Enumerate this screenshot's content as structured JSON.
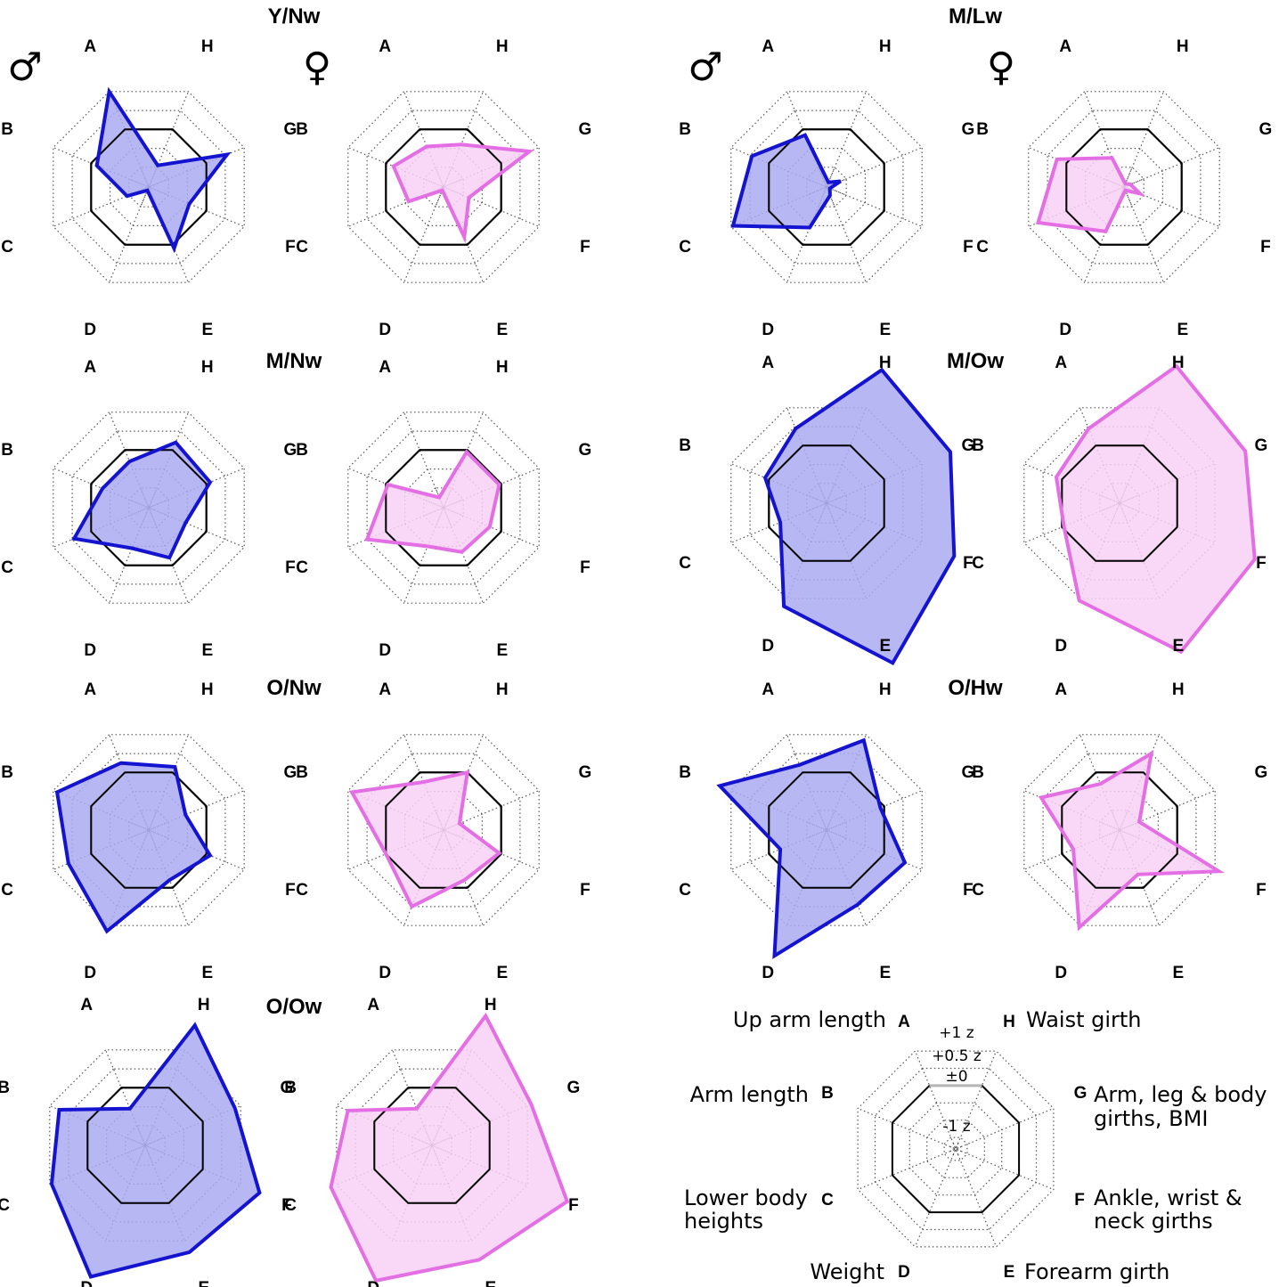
{
  "chart_data": {
    "type": "radar",
    "axes": [
      "A",
      "B",
      "C",
      "D",
      "E",
      "F",
      "G",
      "H"
    ],
    "sex_symbols": {
      "male": "♂",
      "female": "♀"
    },
    "colors": {
      "male": {
        "stroke": "#1414d0",
        "fill": "#aaaaf2"
      },
      "female": {
        "stroke": "#e46ee4",
        "fill": "#f8d0f6"
      },
      "reference": "#000000",
      "grid": "#555555"
    },
    "scale": {
      "rings": [
        -2,
        -1.5,
        -1,
        -0.5,
        0,
        0.5,
        1
      ],
      "reference_ring": 0
    },
    "panels": [
      {
        "group": "Y/Nw",
        "sex": "male",
        "values": {
          "A": 1.0,
          "B": -0.15,
          "C": -0.95,
          "D": -1.9,
          "E": 0.1,
          "F": -0.45,
          "G": 0.55,
          "H": -0.95
        }
      },
      {
        "group": "Y/Nw",
        "sex": "female",
        "values": {
          "A": -0.45,
          "B": -0.2,
          "C": -0.6,
          "D": -1.5,
          "E": -0.2,
          "F": -0.85,
          "G": 0.75,
          "H": -0.4
        }
      },
      {
        "group": "M/Lw",
        "sex": "male",
        "values": {
          "A": -0.15,
          "B": 0.45,
          "C": 0.95,
          "D": -0.45,
          "E": -1.3,
          "F": -1.45,
          "G": -1.15,
          "H": -1.4
        }
      },
      {
        "group": "M/Lw",
        "sex": "female",
        "values": {
          "A": -0.75,
          "B": 0.25,
          "C": 0.75,
          "D": -0.35,
          "E": -2.0,
          "F": -1.1,
          "G": -1.35,
          "H": -2.0
        }
      },
      {
        "group": "M/Nw",
        "sex": "male",
        "values": {
          "A": -0.3,
          "B": -0.3,
          "C": 0.45,
          "D": -0.45,
          "E": -0.2,
          "F": -0.55,
          "G": 0.1,
          "H": 0.2
        }
      },
      {
        "group": "M/Nw",
        "sex": "female",
        "values": {
          "A": -1.25,
          "B": -0.05,
          "C": 0.5,
          "D": -0.5,
          "E": -0.35,
          "F": -0.3,
          "G": -0.05,
          "H": -0.05
        }
      },
      {
        "group": "M/Ow",
        "sex": "male",
        "values": {
          "A": 0.45,
          "B": 0.1,
          "C": -0.3,
          "D": 1.2,
          "E": 2.7,
          "F": 1.85,
          "G": 1.75,
          "H": 2.0
        }
      },
      {
        "group": "M/Ow",
        "sex": "female",
        "values": {
          "A": 0.45,
          "B": 0.15,
          "C": -0.05,
          "D": 1.05,
          "E": 2.4,
          "F": 2.05,
          "G": 1.8,
          "H": 2.1
        }
      },
      {
        "group": "O/Nw",
        "sex": "male",
        "values": {
          "A": 0.25,
          "B": 0.9,
          "C": 0.6,
          "D": 1.15,
          "E": -0.2,
          "F": 0.1,
          "G": -0.55,
          "H": 0.15
        }
      },
      {
        "group": "O/Nw",
        "sex": "female",
        "values": {
          "A": -0.25,
          "B": 0.9,
          "C": 0.0,
          "D": 0.5,
          "E": -0.2,
          "F": -0.05,
          "G": -1.1,
          "H": 0.0
        }
      },
      {
        "group": "O/Hw",
        "sex": "male",
        "values": {
          "A": 0.2,
          "B": 1.3,
          "C": -0.3,
          "D": 1.8,
          "E": 0.45,
          "F": 0.55,
          "G": -0.1,
          "H": 0.85
        }
      },
      {
        "group": "O/Hw",
        "sex": "female",
        "values": {
          "A": -0.3,
          "B": 0.55,
          "C": -0.3,
          "D": 1.05,
          "E": -0.35,
          "F": 1.1,
          "G": -1.0,
          "H": 0.5
        }
      },
      {
        "group": "O/Ow",
        "sex": "male",
        "values": {
          "A": -0.55,
          "B": 0.75,
          "C": 0.95,
          "D": 1.95,
          "E": 1.3,
          "F": 1.5,
          "G": 0.85,
          "H": 1.65
        }
      },
      {
        "group": "O/Ow",
        "sex": "female",
        "values": {
          "A": -0.55,
          "B": 0.7,
          "C": 1.15,
          "D": 2.05,
          "E": 1.5,
          "F": 2.05,
          "G": 1.1,
          "H": 1.9
        }
      }
    ],
    "legend": {
      "descriptors": {
        "A": "Up arm length",
        "B": "Arm length",
        "C": [
          "Lower body",
          "heights"
        ],
        "D": "Weight",
        "E": "Forearm girth",
        "F": [
          "Ankle, wrist &",
          "neck girths"
        ],
        "G": [
          "Arm, leg & body",
          "girths, BMI"
        ],
        "H": "Waist girth"
      },
      "scale_labels": [
        "+1 z",
        "+0.5 z",
        "±0",
        "-1 z"
      ]
    }
  }
}
